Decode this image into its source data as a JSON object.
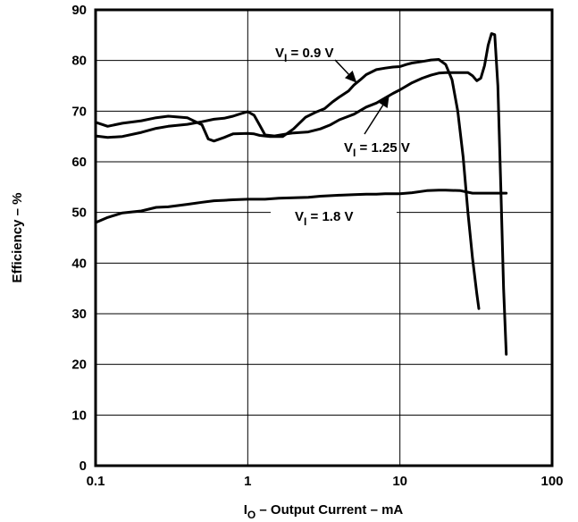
{
  "chart_data": {
    "type": "line",
    "title": "",
    "xlabel": {
      "main": "I",
      "sub": "O",
      "rest": " – Output Current – mA"
    },
    "ylabel": "Efficiency – %",
    "x_scale": "log",
    "xlim": [
      0.1,
      100
    ],
    "ylim": [
      0,
      90
    ],
    "x_ticks": [
      {
        "value": 0.1,
        "label": "0.1"
      },
      {
        "value": 1,
        "label": "1"
      },
      {
        "value": 10,
        "label": "10"
      },
      {
        "value": 100,
        "label": "100"
      }
    ],
    "y_ticks": [
      {
        "value": 0,
        "label": "0"
      },
      {
        "value": 10,
        "label": "10"
      },
      {
        "value": 20,
        "label": "20"
      },
      {
        "value": 30,
        "label": "30"
      },
      {
        "value": 40,
        "label": "40"
      },
      {
        "value": 50,
        "label": "50"
      },
      {
        "value": 60,
        "label": "60"
      },
      {
        "value": 70,
        "label": "70"
      },
      {
        "value": 80,
        "label": "80"
      },
      {
        "value": 90,
        "label": "90"
      }
    ],
    "grid": {
      "x": "decades",
      "y": true
    },
    "series": [
      {
        "name": "VI = 0.9 V",
        "label": {
          "main": "V",
          "sub": "I",
          "rest": " = 0.9 V"
        },
        "x": [
          0.1,
          0.12,
          0.15,
          0.2,
          0.25,
          0.3,
          0.4,
          0.5,
          0.55,
          0.6,
          0.7,
          0.8,
          1.0,
          1.1,
          1.2,
          1.4,
          1.7,
          2.0,
          2.4,
          2.8,
          3.2,
          3.6,
          4.0,
          4.6,
          5.0,
          5.5,
          6.0,
          7.0,
          8.0,
          9.0,
          10,
          11,
          12,
          14,
          16,
          18,
          20,
          22,
          24,
          26,
          28,
          30,
          32,
          33
        ],
        "y": [
          67.8,
          67.0,
          67.6,
          68.1,
          68.7,
          69.0,
          68.7,
          67.3,
          64.5,
          64.1,
          64.8,
          65.5,
          65.6,
          65.5,
          65.2,
          65.0,
          65.0,
          66.5,
          68.8,
          69.8,
          70.5,
          71.8,
          72.8,
          74.0,
          75.2,
          76.2,
          77.2,
          78.2,
          78.5,
          78.7,
          78.8,
          79.2,
          79.5,
          79.8,
          80.1,
          80.2,
          79.2,
          76.2,
          70.0,
          61.0,
          50.0,
          41.0,
          34.0,
          31.0
        ]
      },
      {
        "name": "VI = 1.25 V",
        "label": {
          "main": "V",
          "sub": "I",
          "rest": " = 1.25 V"
        },
        "x": [
          0.1,
          0.12,
          0.15,
          0.2,
          0.25,
          0.3,
          0.4,
          0.5,
          0.6,
          0.7,
          0.8,
          0.9,
          1.0,
          1.1,
          1.2,
          1.3,
          1.5,
          1.8,
          2.0,
          2.5,
          3.0,
          3.5,
          4.0,
          5.0,
          6.0,
          7.0,
          8.0,
          9.0,
          10,
          12,
          14,
          16,
          18,
          20,
          22,
          25,
          28,
          30,
          32,
          34,
          36,
          38,
          40,
          42,
          44,
          46,
          48,
          50
        ],
        "y": [
          65.1,
          64.8,
          65.0,
          65.8,
          66.6,
          67.0,
          67.4,
          67.9,
          68.4,
          68.6,
          69.0,
          69.5,
          69.9,
          69.2,
          67.2,
          65.3,
          65.1,
          65.5,
          65.7,
          65.9,
          66.5,
          67.3,
          68.3,
          69.4,
          70.8,
          71.6,
          72.6,
          73.5,
          74.2,
          75.6,
          76.5,
          77.1,
          77.5,
          77.6,
          77.6,
          77.6,
          77.6,
          77.0,
          76.0,
          76.5,
          79.0,
          83.0,
          85.3,
          85.1,
          75.0,
          55.0,
          35.0,
          22.0
        ]
      },
      {
        "name": "VI = 1.8 V",
        "label": {
          "main": "V",
          "sub": "I",
          "rest": " = 1.8 V"
        },
        "x": [
          0.1,
          0.12,
          0.15,
          0.2,
          0.25,
          0.3,
          0.4,
          0.5,
          0.6,
          0.7,
          0.8,
          1.0,
          1.3,
          1.6,
          2.0,
          2.5,
          3.0,
          4.0,
          5.0,
          6.0,
          7.0,
          8.0,
          10,
          12,
          15,
          18,
          20,
          25,
          30,
          40,
          50
        ],
        "y": [
          48.0,
          49.0,
          49.9,
          50.3,
          51.0,
          51.1,
          51.6,
          52.0,
          52.3,
          52.4,
          52.5,
          52.6,
          52.6,
          52.8,
          52.9,
          53.0,
          53.2,
          53.4,
          53.5,
          53.6,
          53.6,
          53.7,
          53.7,
          53.9,
          54.3,
          54.4,
          54.4,
          54.3,
          53.8,
          53.8,
          53.8
        ]
      }
    ],
    "annotations": [
      {
        "series": 0,
        "point_to": {
          "x": 5.2,
          "y": 75.6
        }
      },
      {
        "series": 1,
        "point_to": {
          "x": 8.5,
          "y": 73.1
        }
      },
      {
        "series": 2,
        "point_to": {
          "x": null,
          "y": null
        }
      }
    ]
  }
}
